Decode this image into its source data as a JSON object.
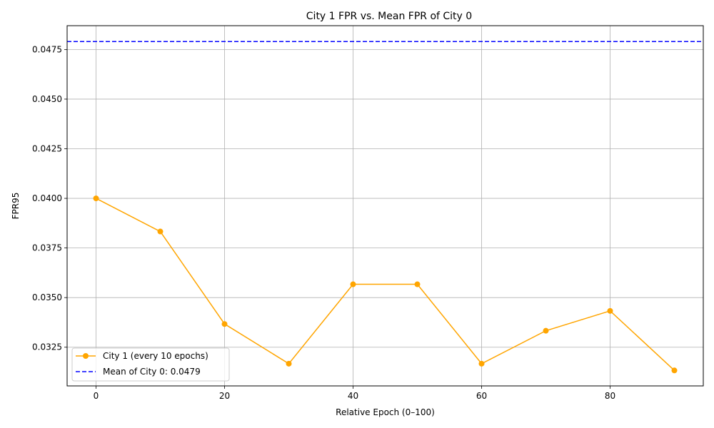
{
  "chart_data": {
    "type": "line",
    "title": "City 1 FPR vs. Mean FPR of City 0",
    "xlabel": "Relative Epoch (0–100)",
    "ylabel": "FPR95",
    "xlim": [
      -4.5,
      94.5
    ],
    "ylim": [
      0.3055,
      0.0487
    ],
    "x_ticks": [
      0,
      20,
      40,
      60,
      80
    ],
    "x_tick_labels": [
      "0",
      "20",
      "40",
      "60",
      "80"
    ],
    "y_ticks": [
      0.0325,
      0.035,
      0.0375,
      0.04,
      0.0425,
      0.045,
      0.0475
    ],
    "y_tick_labels": [
      "0.0325",
      "0.0350",
      "0.0375",
      "0.0400",
      "0.0425",
      "0.0450",
      "0.0475"
    ],
    "grid": true,
    "legend_position": "lower-left",
    "series": [
      {
        "name": "City 1 (every 10 epochs)",
        "style": "solid-with-markers",
        "color": "#ffa500",
        "x": [
          0,
          10,
          20,
          30,
          40,
          50,
          60,
          70,
          80,
          90
        ],
        "y": [
          0.04,
          0.03833,
          0.03367,
          0.03167,
          0.03567,
          0.03567,
          0.03167,
          0.03333,
          0.03433,
          0.03133
        ]
      },
      {
        "name": "Mean of City 0: 0.0479",
        "style": "dashed-horizontal",
        "color": "#0000ff",
        "y": 0.0479
      }
    ]
  }
}
